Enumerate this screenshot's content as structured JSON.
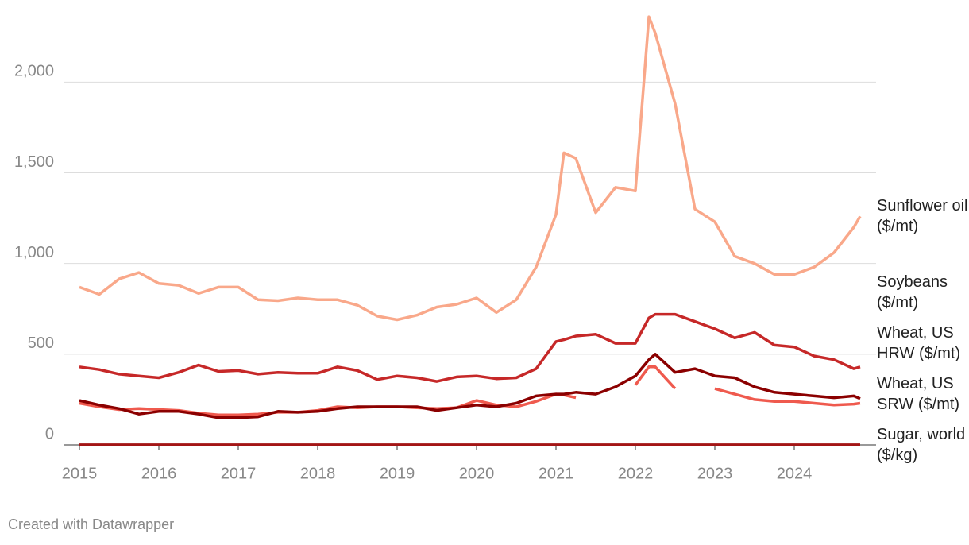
{
  "chart_data": {
    "type": "line",
    "x": [
      2015,
      2015.25,
      2015.5,
      2015.75,
      2016,
      2016.25,
      2016.5,
      2016.75,
      2017,
      2017.25,
      2017.5,
      2017.75,
      2018,
      2018.25,
      2018.5,
      2018.75,
      2019,
      2019.25,
      2019.5,
      2019.75,
      2020,
      2020.25,
      2020.5,
      2020.75,
      2021,
      2021.1,
      2021.25,
      2021.5,
      2021.75,
      2022,
      2022.17,
      2022.25,
      2022.5,
      2022.75,
      2023,
      2023.25,
      2023.5,
      2023.75,
      2024,
      2024.25,
      2024.5,
      2024.75,
      2024.83
    ],
    "series": [
      {
        "name": "Sunflower oil ($/mt)",
        "color": "#f9a88a",
        "values": [
          870,
          830,
          915,
          950,
          890,
          880,
          835,
          870,
          870,
          800,
          795,
          810,
          800,
          800,
          770,
          710,
          690,
          715,
          760,
          775,
          810,
          730,
          800,
          980,
          1270,
          1610,
          1580,
          1280,
          1420,
          1400,
          2360,
          2270,
          1880,
          1300,
          1230,
          1040,
          1000,
          940,
          940,
          980,
          1060,
          1200,
          1260
        ]
      },
      {
        "name": "Soybeans ($/mt)",
        "color": "#c62828",
        "values": [
          430,
          415,
          390,
          380,
          370,
          400,
          440,
          405,
          410,
          390,
          400,
          395,
          395,
          430,
          410,
          360,
          380,
          370,
          350,
          375,
          380,
          365,
          370,
          420,
          570,
          580,
          600,
          610,
          560,
          560,
          700,
          720,
          720,
          680,
          640,
          590,
          620,
          550,
          540,
          490,
          470,
          420,
          430
        ]
      },
      {
        "name": "Wheat, US HRW ($/mt)",
        "color": "#8b0000",
        "values": [
          245,
          220,
          200,
          170,
          185,
          185,
          170,
          150,
          150,
          155,
          185,
          180,
          185,
          200,
          210,
          210,
          210,
          210,
          190,
          205,
          220,
          210,
          230,
          270,
          280,
          280,
          290,
          280,
          320,
          380,
          470,
          500,
          400,
          420,
          380,
          370,
          320,
          290,
          280,
          270,
          260,
          270,
          255
        ]
      },
      {
        "name": "Wheat, US SRW ($/mt)",
        "color": "#ef5a4e",
        "values": [
          230,
          210,
          195,
          200,
          195,
          190,
          175,
          165,
          165,
          170,
          180,
          180,
          190,
          210,
          205,
          210,
          210,
          205,
          200,
          205,
          245,
          220,
          210,
          240,
          280,
          275,
          260,
          null,
          null,
          330,
          430,
          430,
          310,
          null,
          310,
          280,
          250,
          240,
          240,
          230,
          220,
          225,
          230
        ]
      },
      {
        "name": "Sugar, world ($/kg)",
        "color": "#a31515",
        "values": [
          0.3,
          0.3,
          0.3,
          0.35,
          0.3,
          0.4,
          0.45,
          0.4,
          0.4,
          0.35,
          0.3,
          0.3,
          0.28,
          0.28,
          0.27,
          0.28,
          0.28,
          0.28,
          0.27,
          0.28,
          0.3,
          0.25,
          0.28,
          0.33,
          0.37,
          0.38,
          0.38,
          0.42,
          0.42,
          0.4,
          0.4,
          0.42,
          0.4,
          0.4,
          0.45,
          0.5,
          0.55,
          0.58,
          0.5,
          0.45,
          0.42,
          0.42,
          0.42
        ]
      }
    ],
    "xlim": [
      2015,
      2025
    ],
    "xticks": [
      2015,
      2016,
      2017,
      2018,
      2019,
      2020,
      2021,
      2022,
      2023,
      2024
    ],
    "ylim": [
      0,
      2400
    ],
    "yticks": [
      0,
      500,
      {
        "value": 1000,
        "label": "1,000"
      },
      {
        "value": 1500,
        "label": "1,500"
      },
      {
        "value": 2000,
        "label": "2,000"
      }
    ],
    "grid": true,
    "footer": "Created with Datawrapper"
  }
}
